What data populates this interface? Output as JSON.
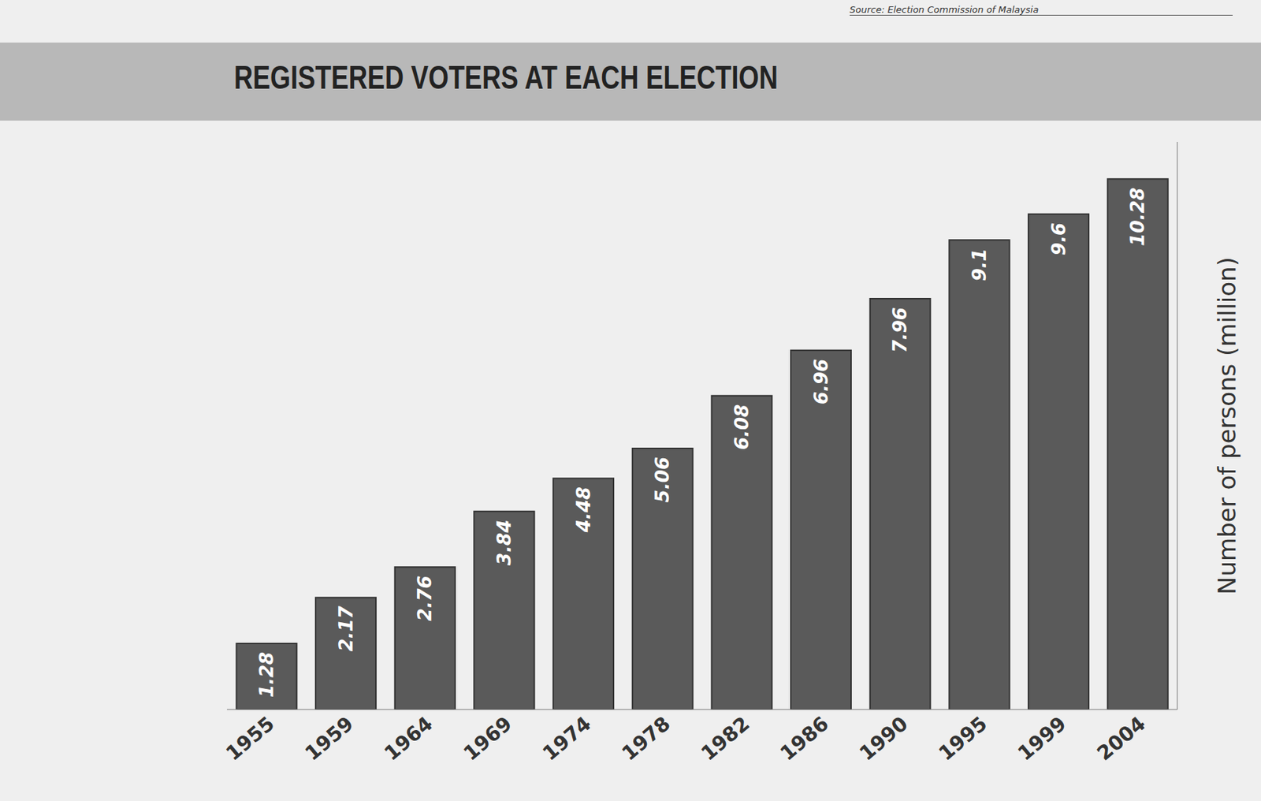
{
  "chart_data": {
    "type": "bar",
    "title": "REGISTERED VOTERS AT EACH ELECTION",
    "source": "Source: Election Commission of Malaysia",
    "y_label": "Number of persons (million)",
    "categories": [
      "1955",
      "1959",
      "1964",
      "1969",
      "1974",
      "1978",
      "1982",
      "1986",
      "1990",
      "1995",
      "1999",
      "2004"
    ],
    "values": [
      1.28,
      2.17,
      2.76,
      3.84,
      4.48,
      5.06,
      6.08,
      6.96,
      7.96,
      9.1,
      9.6,
      10.28
    ],
    "color": "#5a5a5a",
    "ylim": [
      0,
      11
    ],
    "data_labels": true,
    "tick_labels": "x"
  }
}
